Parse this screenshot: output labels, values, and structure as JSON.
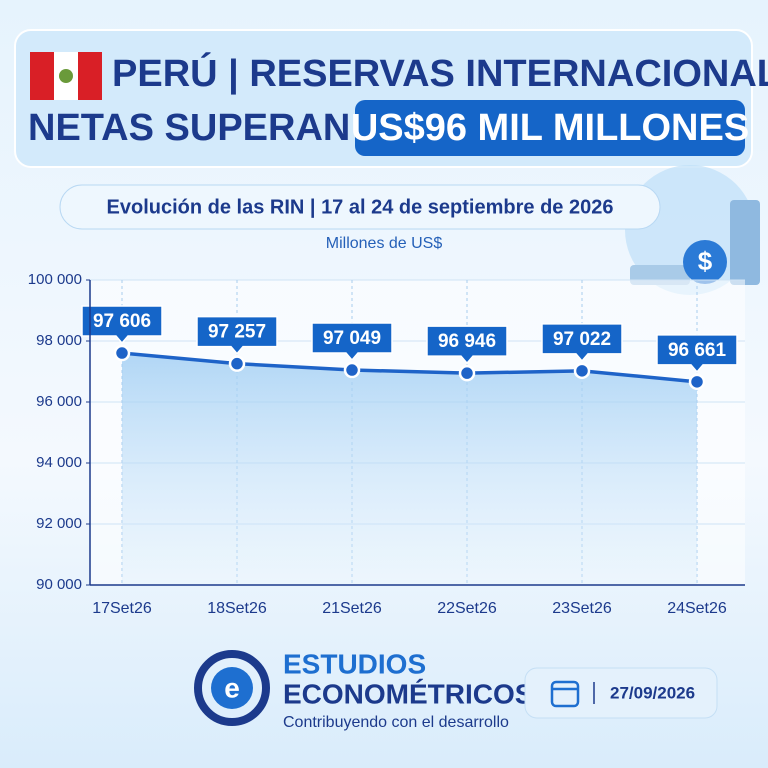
{
  "chart_data": {
    "type": "line",
    "title": "PERÚ | RESERVAS INTERNACIONALES",
    "title_line2": "NETAS SUPERAN LOS",
    "title_highlight": "US$96 MIL MILLONES",
    "subtitle": "Evolución de las RIN | 17 al 24 de septiembre de 2026",
    "y_label": "Millones de US$",
    "categories": [
      "17Set26",
      "18Set26",
      "21Set26",
      "22Set26",
      "23Set26",
      "24Set26"
    ],
    "series": [
      {
        "color": "#1e63c8",
        "values": [
          97606,
          97257,
          97049,
          96946,
          97022,
          96661
        ],
        "value_labels": [
          "97 606",
          "97 257",
          "97 049",
          "96 946",
          "97 022",
          "96 661"
        ]
      }
    ],
    "ylim": [
      90000,
      100000
    ],
    "yticks": [
      {
        "value": 90000,
        "label": "90 000"
      },
      {
        "value": 92000,
        "label": "92 000"
      },
      {
        "value": 94000,
        "label": "94 000"
      },
      {
        "value": 96000,
        "label": "96 000"
      },
      {
        "value": 98000,
        "label": "98 000"
      },
      {
        "value": 100000,
        "label": "100 000"
      }
    ],
    "grid": true
  },
  "footer": {
    "brand_line1": "ESTUDIOS",
    "brand_line2": "ECONOMÉTRICOS",
    "tagline": "Contribuyendo con el desarrollo",
    "date": "27/09/2026"
  }
}
